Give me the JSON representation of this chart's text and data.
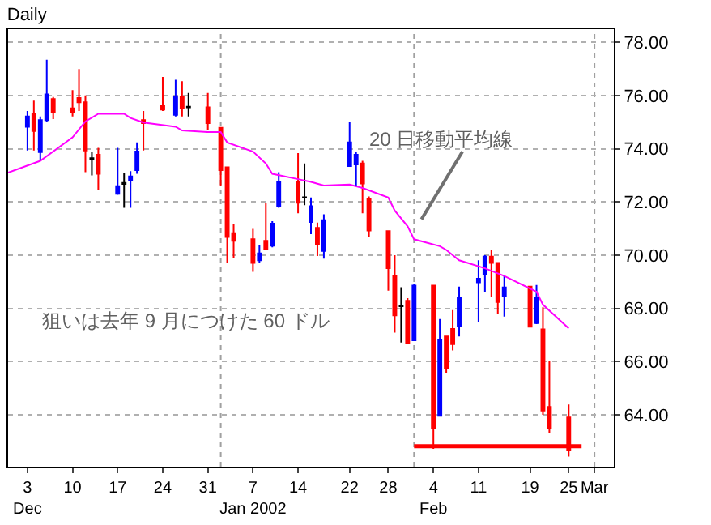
{
  "chart_data": {
    "type": "candlestick",
    "title": "Daily",
    "x": [
      "2001-12-03",
      "2001-12-04",
      "2001-12-05",
      "2001-12-06",
      "2001-12-07",
      "2001-12-10",
      "2001-12-11",
      "2001-12-12",
      "2001-12-13",
      "2001-12-14",
      "2001-12-17",
      "2001-12-18",
      "2001-12-19",
      "2001-12-20",
      "2001-12-21",
      "2001-12-24",
      "2001-12-26",
      "2001-12-27",
      "2001-12-28",
      "2001-12-31",
      "2002-01-02",
      "2002-01-03",
      "2002-01-04",
      "2002-01-07",
      "2002-01-08",
      "2002-01-09",
      "2002-01-10",
      "2002-01-11",
      "2002-01-14",
      "2002-01-15",
      "2002-01-16",
      "2002-01-17",
      "2002-01-18",
      "2002-01-22",
      "2002-01-23",
      "2002-01-24",
      "2002-01-25",
      "2002-01-28",
      "2002-01-29",
      "2002-01-30",
      "2002-01-31",
      "2002-02-01",
      "2002-02-04",
      "2002-02-05",
      "2002-02-06",
      "2002-02-07",
      "2002-02-08",
      "2002-02-11",
      "2002-02-12",
      "2002-02-13",
      "2002-02-14",
      "2002-02-15",
      "2002-02-19",
      "2002-02-20",
      "2002-02-21",
      "2002-02-22",
      "2002-02-25"
    ],
    "ohlc": [
      [
        74.83,
        75.42,
        73.94,
        75.22
      ],
      [
        75.32,
        75.81,
        73.94,
        74.67
      ],
      [
        73.88,
        75.22,
        73.59,
        75.08
      ],
      [
        75.08,
        77.35,
        75.0,
        76.05
      ],
      [
        75.87,
        75.95,
        75.12,
        75.38
      ],
      [
        75.52,
        76.21,
        75.22,
        75.38
      ],
      [
        75.91,
        77.0,
        75.42,
        75.75
      ],
      [
        75.75,
        76.01,
        73.12,
        73.94
      ],
      [
        73.65,
        73.88,
        73.0,
        73.62
      ],
      [
        73.78,
        74.04,
        72.47,
        73.06
      ],
      [
        72.31,
        74.04,
        72.27,
        72.6
      ],
      [
        72.68,
        73.1,
        71.78,
        72.72
      ],
      [
        72.82,
        73.16,
        71.78,
        72.96
      ],
      [
        73.2,
        74.24,
        73.06,
        73.9
      ],
      [
        75.08,
        75.42,
        73.94,
        74.97
      ],
      [
        75.62,
        76.7,
        75.42,
        75.48
      ],
      [
        75.28,
        76.6,
        75.22,
        75.97
      ],
      [
        75.97,
        76.54,
        75.22,
        75.52
      ],
      [
        75.58,
        76.1,
        75.22,
        75.56
      ],
      [
        75.56,
        76.1,
        74.69,
        74.97
      ],
      [
        74.79,
        74.79,
        72.62,
        73.2
      ],
      [
        73.31,
        73.31,
        69.71,
        70.69
      ],
      [
        70.83,
        71.19,
        69.91,
        70.54
      ],
      [
        70.6,
        70.99,
        69.38,
        69.71
      ],
      [
        69.81,
        70.4,
        69.71,
        70.07
      ],
      [
        70.54,
        71.97,
        70.2,
        70.24
      ],
      [
        70.36,
        71.28,
        70.3,
        71.19
      ],
      [
        71.84,
        73.12,
        71.78,
        72.76
      ],
      [
        72.76,
        73.84,
        71.58,
        71.97
      ],
      [
        72.18,
        73.45,
        71.88,
        72.16
      ],
      [
        71.25,
        72.17,
        70.79,
        71.84
      ],
      [
        71.03,
        71.23,
        69.97,
        70.4
      ],
      [
        70.16,
        71.54,
        69.87,
        71.32
      ],
      [
        73.35,
        75.03,
        73.35,
        74.24
      ],
      [
        73.41,
        73.9,
        72.62,
        73.78
      ],
      [
        73.45,
        73.55,
        71.58,
        72.7
      ],
      [
        72.11,
        72.21,
        70.69,
        70.93
      ],
      [
        70.91,
        70.91,
        68.67,
        69.51
      ],
      [
        69.22,
        70.0,
        67.09,
        67.74
      ],
      [
        68.1,
        68.8,
        66.72,
        68.08
      ],
      [
        68.29,
        68.39,
        66.7,
        66.7
      ],
      [
        66.8,
        68.92,
        66.8,
        68.86
      ],
      [
        68.86,
        68.86,
        62.72,
        63.51
      ],
      [
        63.96,
        67.6,
        63.96,
        66.82
      ],
      [
        66.95,
        66.95,
        65.58,
        65.77
      ],
      [
        67.23,
        67.94,
        66.42,
        66.66
      ],
      [
        67.35,
        68.82,
        66.95,
        68.39
      ],
      [
        68.98,
        69.81,
        67.5,
        69.12
      ],
      [
        69.28,
        70.0,
        68.63,
        69.95
      ],
      [
        69.95,
        70.2,
        68.43,
        69.71
      ],
      [
        69.71,
        69.71,
        67.8,
        68.24
      ],
      [
        68.47,
        69.22,
        67.69,
        68.79
      ],
      [
        68.82,
        68.82,
        67.31,
        67.31
      ],
      [
        67.45,
        68.88,
        67.41,
        68.39
      ],
      [
        67.21,
        68.04,
        64.0,
        64.16
      ],
      [
        64.3,
        66.03,
        63.31,
        63.51
      ],
      [
        63.9,
        64.39,
        62.43,
        62.66
      ]
    ],
    "colors": [
      "#0000ff",
      "#ff0000",
      "#0000ff",
      "#0000ff",
      "#ff0000",
      "#ff0000",
      "#ff0000",
      "#ff0000",
      "#000000",
      "#ff0000",
      "#0000ff",
      "#000000",
      "#0000ff",
      "#0000ff",
      "#ff0000",
      "#ff0000",
      "#0000ff",
      "#ff0000",
      "#000000",
      "#ff0000",
      "#ff0000",
      "#ff0000",
      "#ff0000",
      "#ff0000",
      "#0000ff",
      "#ff0000",
      "#0000ff",
      "#0000ff",
      "#ff0000",
      "#000000",
      "#0000ff",
      "#ff0000",
      "#0000ff",
      "#0000ff",
      "#0000ff",
      "#ff0000",
      "#ff0000",
      "#ff0000",
      "#ff0000",
      "#000000",
      "#ff0000",
      "#0000ff",
      "#ff0000",
      "#0000ff",
      "#ff0000",
      "#ff0000",
      "#0000ff",
      "#0000ff",
      "#0000ff",
      "#ff0000",
      "#ff0000",
      "#0000ff",
      "#ff0000",
      "#0000ff",
      "#ff0000",
      "#ff0000",
      "#ff0000"
    ],
    "series": [
      {
        "type": "line",
        "color": "#ff00ff",
        "x": [
          "2001-11-30",
          "2001-12-05",
          "2001-12-10",
          "2001-12-12",
          "2001-12-14",
          "2001-12-18",
          "2001-12-19",
          "2001-12-21",
          "2001-12-26",
          "2001-12-27",
          "2001-12-31",
          "2002-01-02",
          "2002-01-03",
          "2002-01-07",
          "2002-01-09",
          "2002-01-10",
          "2002-01-14",
          "2002-01-16",
          "2002-01-18",
          "2002-01-22",
          "2002-01-24",
          "2002-01-28",
          "2002-01-29",
          "2002-01-31",
          "2002-02-01",
          "2002-02-05",
          "2002-02-06",
          "2002-02-08",
          "2002-02-12",
          "2002-02-15",
          "2002-02-20",
          "2002-02-21",
          "2002-02-25"
        ],
        "values": [
          73.11,
          73.55,
          74.43,
          75.03,
          75.32,
          75.32,
          75.16,
          74.99,
          74.83,
          74.69,
          74.63,
          74.63,
          74.24,
          73.9,
          73.45,
          73.06,
          72.86,
          72.76,
          72.62,
          72.66,
          72.53,
          72.17,
          71.68,
          71.09,
          70.6,
          70.34,
          70.2,
          69.81,
          69.51,
          69.22,
          68.63,
          68.14,
          67.25
        ]
      },
      {
        "type": "line",
        "color": "#ff0000",
        "x": [
          "2002-02-01",
          "2002-02-27"
        ],
        "values": [
          62.82,
          62.82
        ]
      }
    ],
    "xlim": [
      "2001-11-30",
      "2002-03-04"
    ],
    "xticks": [
      {
        "value": "2001-12-03",
        "label": "3\nDec"
      },
      {
        "value": "2001-12-10",
        "label": "10"
      },
      {
        "value": "2001-12-17",
        "label": "17"
      },
      {
        "value": "2001-12-24",
        "label": "24"
      },
      {
        "value": "2001-12-31",
        "label": "31"
      },
      {
        "value": "2002-01-07",
        "label": "7\nJan 2002"
      },
      {
        "value": "2002-01-14",
        "label": "14"
      },
      {
        "value": "2002-01-22",
        "label": "22"
      },
      {
        "value": "2002-01-28",
        "label": "28"
      },
      {
        "value": "2002-02-04",
        "label": "4\nFeb"
      },
      {
        "value": "2002-02-11",
        "label": "11"
      },
      {
        "value": "2002-02-19",
        "label": "19"
      },
      {
        "value": "2002-02-25",
        "label": "25"
      },
      {
        "value": "2002-03-01",
        "label": "Mar"
      }
    ],
    "ylim": [
      62.05,
      78.5
    ],
    "yticks": [
      {
        "value": 64,
        "label": "64.00"
      },
      {
        "value": 66,
        "label": "66.00"
      },
      {
        "value": 68,
        "label": "68.00"
      },
      {
        "value": 70,
        "label": "70.00"
      },
      {
        "value": 72,
        "label": "72.00"
      },
      {
        "value": 74,
        "label": "74.00"
      },
      {
        "value": 76,
        "label": "76.00"
      },
      {
        "value": 78,
        "label": "78.00"
      }
    ],
    "grid": "y",
    "ref_lines": [
      {
        "axis": "x",
        "value": "2002-01-02",
        "color": "#a0a0a0",
        "line_style": "dotted"
      },
      {
        "axis": "x",
        "value": "2002-02-01",
        "color": "#a0a0a0",
        "line_style": "dotted"
      },
      {
        "axis": "x",
        "value": "2002-03-01",
        "color": "#a0a0a0",
        "line_style": "dotted"
      }
    ],
    "annotations": [
      "20 日移動平均線",
      "狙いは去年 9 月につけた 60 ドル"
    ]
  }
}
